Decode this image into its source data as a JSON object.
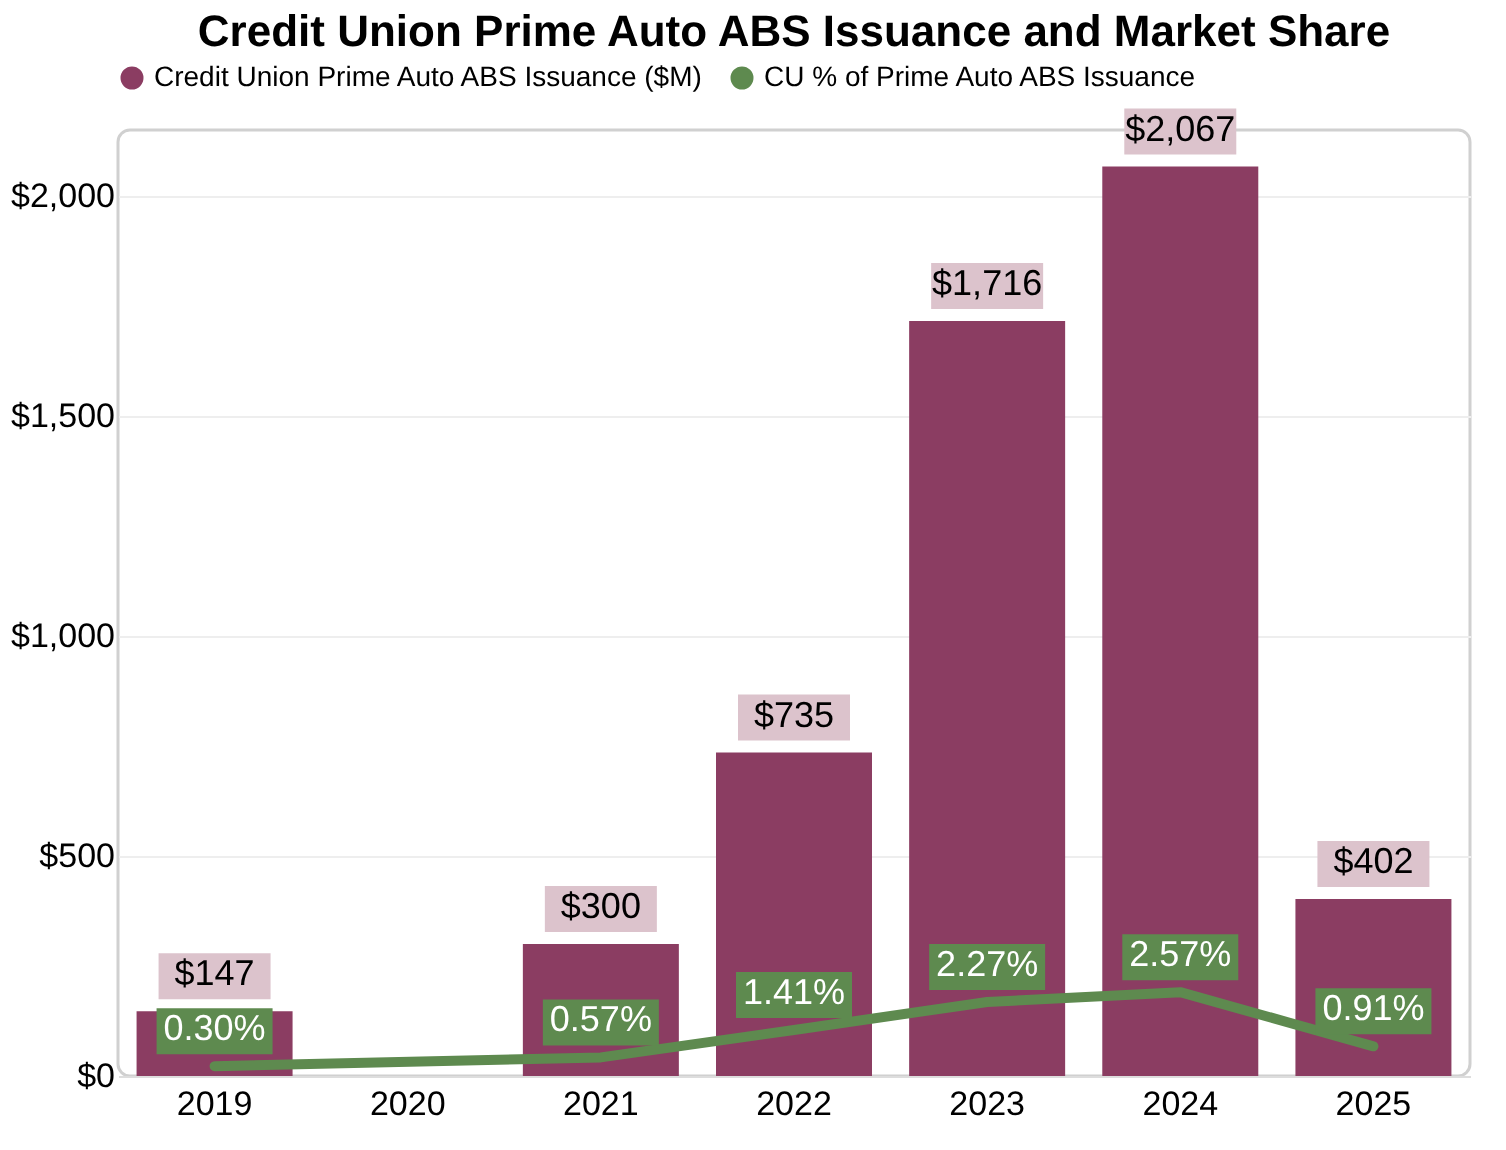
{
  "chart_data": {
    "type": "bar",
    "title": "Credit Union Prime Auto ABS Issuance and Market Share",
    "categories": [
      "2019",
      "2020",
      "2021",
      "2022",
      "2023",
      "2024",
      "2025"
    ],
    "series": [
      {
        "name": "Credit Union Prime Auto ABS Issuance ($M)",
        "color": "#8b3d62",
        "values": [
          147,
          null,
          300,
          735,
          1716,
          2067,
          402
        ],
        "value_labels": [
          "$147",
          null,
          "$300",
          "$735",
          "$1,716",
          "$2,067",
          "$402"
        ]
      },
      {
        "name": "CU % of Prime Auto ABS Issuance",
        "type": "line",
        "axis": "y2",
        "color": "#5e8a4f",
        "values": [
          0.3,
          null,
          0.57,
          1.41,
          2.27,
          2.57,
          0.91
        ],
        "value_labels": [
          "0.30%",
          null,
          "0.57%",
          "1.41%",
          "2.27%",
          "2.57%",
          "0.91%"
        ]
      }
    ],
    "ylim": [
      0,
      2150
    ],
    "yticks": [
      {
        "value": 0,
        "label": "$0"
      },
      {
        "value": 500,
        "label": "$500"
      },
      {
        "value": 1000,
        "label": "$1,000"
      },
      {
        "value": 1500,
        "label": "$1,500"
      },
      {
        "value": 2000,
        "label": "$2,000"
      }
    ],
    "y2lim": [
      0,
      29
    ],
    "grid": "y",
    "legend": "top left",
    "marker": "none",
    "line_style": "solid"
  }
}
